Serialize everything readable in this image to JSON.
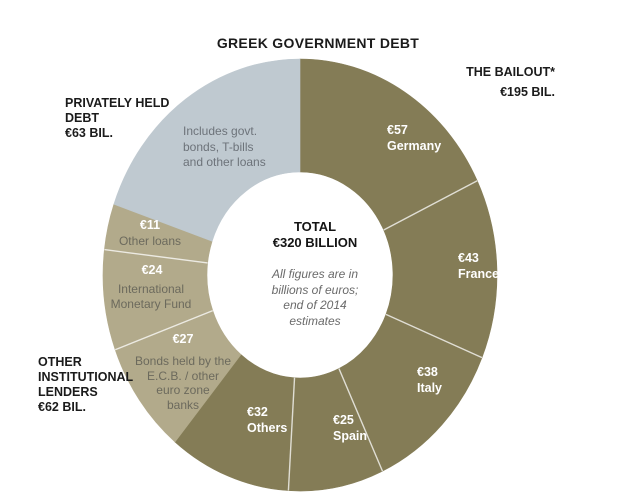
{
  "title": "GREEK GOVERNMENT DEBT",
  "callouts": {
    "bailout": "THE BAILOUT*\n€195 BIL.",
    "private": "PRIVATELY HELD\nDEBT\n€63 BIL.",
    "institutional": "OTHER\nINSTITUTIONAL\nLENDERS\n€62 BIL."
  },
  "center": {
    "total": "TOTAL\n€320 BILLION",
    "note": "All figures are in\nbillions of euros;\nend of 2014\nestimates"
  },
  "chart_data": {
    "type": "pie",
    "subtype": "donut",
    "title": "GREEK GOVERNMENT DEBT",
    "units": "billions of euros",
    "total": 320,
    "start_angle_deg": 0,
    "direction": "clockwise",
    "colors": {
      "bailout": "#847c56",
      "institutional": "#b2aa8b",
      "private": "#bfc9d0"
    },
    "groups": [
      {
        "name": "The bailout*",
        "value": 195,
        "value_label": "€195 BIL.",
        "group_key": "bailout"
      },
      {
        "name": "Other institutional lenders",
        "value": 62,
        "value_label": "€62 BIL.",
        "group_key": "institutional"
      },
      {
        "name": "Privately held debt",
        "value": 63,
        "value_label": "€63 BIL.",
        "group_key": "private"
      }
    ],
    "segments": [
      {
        "id": "germany",
        "label": "Germany",
        "value": 57,
        "value_label": "€57",
        "group": "bailout"
      },
      {
        "id": "france",
        "label": "France",
        "value": 43,
        "value_label": "€43",
        "group": "bailout"
      },
      {
        "id": "italy",
        "label": "Italy",
        "value": 38,
        "value_label": "€38",
        "group": "bailout"
      },
      {
        "id": "spain",
        "label": "Spain",
        "value": 25,
        "value_label": "€25",
        "group": "bailout"
      },
      {
        "id": "others",
        "label": "Others",
        "value": 32,
        "value_label": "€32",
        "group": "bailout"
      },
      {
        "id": "ecb-bonds",
        "label": "Bonds held by the E.C.B. / other euro zone banks",
        "label_display": "Bonds held by the\nE.C.B. / other\neuro zone\nbanks",
        "value": 27,
        "value_label": "€27",
        "group": "institutional"
      },
      {
        "id": "imf",
        "label": "International Monetary Fund",
        "label_display": "International\nMonetary Fund",
        "value": 24,
        "value_label": "€24",
        "group": "institutional"
      },
      {
        "id": "other-loans",
        "label": "Other loans",
        "label_display": "Other loans",
        "value": 11,
        "value_label": "€11",
        "group": "institutional"
      },
      {
        "id": "private",
        "label": "Privately held debt",
        "value": 63,
        "group": "private",
        "note": "Includes govt. bonds, T-bills and other loans",
        "note_display": "Includes govt.\nbonds, T-bills\nand other loans"
      }
    ]
  }
}
